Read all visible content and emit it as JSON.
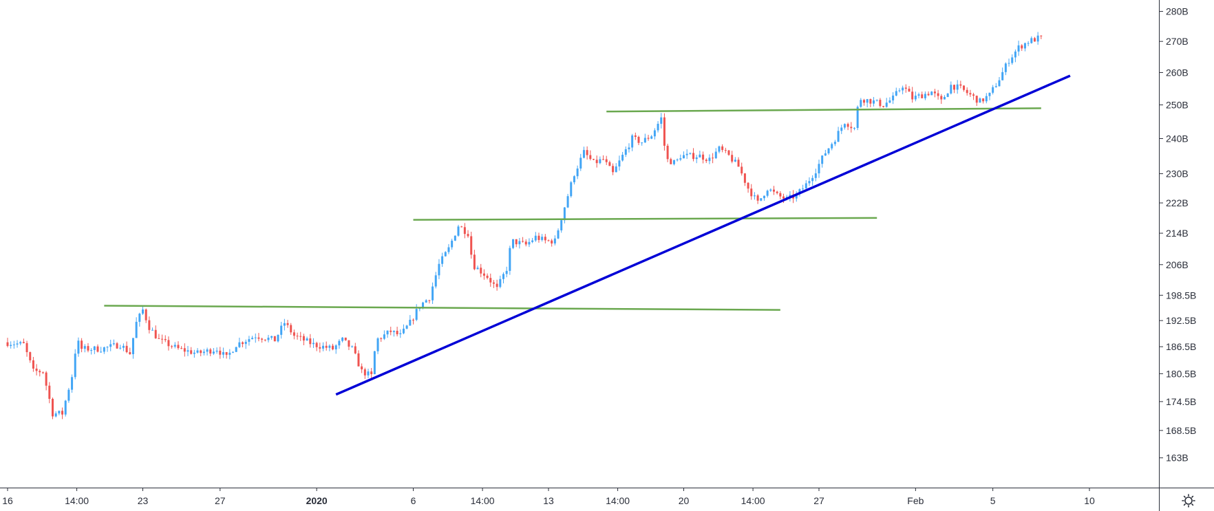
{
  "chart_data": {
    "type": "candlestick",
    "colors": {
      "up": "#42a5f5",
      "down": "#ef5350",
      "horizontal_lines": "#6aa84f",
      "trendline": "#0000d6",
      "axis": "#2a2e39",
      "background": "#ffffff"
    },
    "y_axis": {
      "position": "right",
      "scale": "log",
      "range": [
        160,
        282
      ],
      "ticks": [
        "280B",
        "270B",
        "260B",
        "250B",
        "240B",
        "230B",
        "222B",
        "214B",
        "206B",
        "198.5B",
        "192.5B",
        "186.5B",
        "180.5B",
        "174.5B",
        "168.5B",
        "163B"
      ],
      "tick_values": [
        280,
        270,
        260,
        250,
        240,
        230,
        222,
        214,
        206,
        198.5,
        192.5,
        186.5,
        180.5,
        174.5,
        168.5,
        163
      ]
    },
    "x_axis": {
      "range": [
        "2019-12-16",
        "2020-02-10"
      ],
      "ticks": [
        {
          "label": "16",
          "t": "2019-12-16"
        },
        {
          "label": "14:00",
          "t": "2019-12-19T14:00"
        },
        {
          "label": "23",
          "t": "2019-12-23"
        },
        {
          "label": "27",
          "t": "2019-12-27"
        },
        {
          "label": "2020",
          "t": "2020-01-01",
          "bold": true
        },
        {
          "label": "6",
          "t": "2020-01-06"
        },
        {
          "label": "14:00",
          "t": "2020-01-09T14:00"
        },
        {
          "label": "13",
          "t": "2020-01-13"
        },
        {
          "label": "14:00",
          "t": "2020-01-16T14:00"
        },
        {
          "label": "20",
          "t": "2020-01-20"
        },
        {
          "label": "14:00",
          "t": "2020-01-23T14:00"
        },
        {
          "label": "27",
          "t": "2020-01-27"
        },
        {
          "label": "Feb",
          "t": "2020-02-01"
        },
        {
          "label": "5",
          "t": "2020-02-05"
        },
        {
          "label": "10",
          "t": "2020-02-10"
        }
      ]
    },
    "price_path": [
      {
        "t": "2019-12-16",
        "v": 187.5
      },
      {
        "t": "2019-12-17",
        "v": 187
      },
      {
        "t": "2019-12-17T12:00",
        "v": 181
      },
      {
        "t": "2019-12-18",
        "v": 181
      },
      {
        "t": "2019-12-18T12:00",
        "v": 172
      },
      {
        "t": "2019-12-19",
        "v": 172
      },
      {
        "t": "2019-12-19T12:00",
        "v": 180
      },
      {
        "t": "2019-12-19T18:00",
        "v": 188
      },
      {
        "t": "2019-12-20",
        "v": 186
      },
      {
        "t": "2019-12-21",
        "v": 186
      },
      {
        "t": "2019-12-22",
        "v": 187
      },
      {
        "t": "2019-12-22T12:00",
        "v": 185
      },
      {
        "t": "2019-12-22T20:00",
        "v": 192
      },
      {
        "t": "2019-12-23T04:00",
        "v": 195
      },
      {
        "t": "2019-12-23T12:00",
        "v": 191
      },
      {
        "t": "2019-12-24",
        "v": 188
      },
      {
        "t": "2019-12-25",
        "v": 186
      },
      {
        "t": "2019-12-26",
        "v": 185
      },
      {
        "t": "2019-12-27",
        "v": 186
      },
      {
        "t": "2019-12-27T12:00",
        "v": 184
      },
      {
        "t": "2019-12-28",
        "v": 187
      },
      {
        "t": "2019-12-29",
        "v": 189
      },
      {
        "t": "2019-12-30",
        "v": 188
      },
      {
        "t": "2019-12-30T12:00",
        "v": 192
      },
      {
        "t": "2019-12-31",
        "v": 189
      },
      {
        "t": "2020-01-01",
        "v": 187
      },
      {
        "t": "2020-01-02",
        "v": 186
      },
      {
        "t": "2020-01-02T12:00",
        "v": 188
      },
      {
        "t": "2020-01-03",
        "v": 186
      },
      {
        "t": "2020-01-03T12:00",
        "v": 181
      },
      {
        "t": "2020-01-04",
        "v": 180
      },
      {
        "t": "2020-01-04T06:00",
        "v": 188
      },
      {
        "t": "2020-01-05",
        "v": 190
      },
      {
        "t": "2020-01-05T12:00",
        "v": 189
      },
      {
        "t": "2020-01-06",
        "v": 192
      },
      {
        "t": "2020-01-06T12:00",
        "v": 196
      },
      {
        "t": "2020-01-07",
        "v": 198
      },
      {
        "t": "2020-01-07T12:00",
        "v": 206
      },
      {
        "t": "2020-01-08",
        "v": 210
      },
      {
        "t": "2020-01-08T12:00",
        "v": 216
      },
      {
        "t": "2020-01-09",
        "v": 214
      },
      {
        "t": "2020-01-09T06:00",
        "v": 206
      },
      {
        "t": "2020-01-10",
        "v": 203
      },
      {
        "t": "2020-01-10T12:00",
        "v": 200
      },
      {
        "t": "2020-01-11",
        "v": 205
      },
      {
        "t": "2020-01-11T06:00",
        "v": 212
      },
      {
        "t": "2020-01-12",
        "v": 211
      },
      {
        "t": "2020-01-12T12:00",
        "v": 213
      },
      {
        "t": "2020-01-13",
        "v": 212
      },
      {
        "t": "2020-01-13T12:00",
        "v": 212
      },
      {
        "t": "2020-01-14",
        "v": 221
      },
      {
        "t": "2020-01-14T12:00",
        "v": 230
      },
      {
        "t": "2020-01-15",
        "v": 236
      },
      {
        "t": "2020-01-15T12:00",
        "v": 233
      },
      {
        "t": "2020-01-16",
        "v": 234
      },
      {
        "t": "2020-01-16T12:00",
        "v": 230
      },
      {
        "t": "2020-01-17",
        "v": 235
      },
      {
        "t": "2020-01-17T12:00",
        "v": 240
      },
      {
        "t": "2020-01-18",
        "v": 239
      },
      {
        "t": "2020-01-18T12:00",
        "v": 241
      },
      {
        "t": "2020-01-19",
        "v": 246
      },
      {
        "t": "2020-01-19T06:00",
        "v": 234
      },
      {
        "t": "2020-01-19T18:00",
        "v": 233
      },
      {
        "t": "2020-01-20",
        "v": 235
      },
      {
        "t": "2020-01-21",
        "v": 235
      },
      {
        "t": "2020-01-21T12:00",
        "v": 234
      },
      {
        "t": "2020-01-22",
        "v": 237
      },
      {
        "t": "2020-01-22T12:00",
        "v": 235
      },
      {
        "t": "2020-01-23",
        "v": 232
      },
      {
        "t": "2020-01-23T12:00",
        "v": 226
      },
      {
        "t": "2020-01-24",
        "v": 222
      },
      {
        "t": "2020-01-24T12:00",
        "v": 226
      },
      {
        "t": "2020-01-25",
        "v": 224
      },
      {
        "t": "2020-01-25T12:00",
        "v": 223
      },
      {
        "t": "2020-01-26",
        "v": 224
      },
      {
        "t": "2020-01-26T12:00",
        "v": 227
      },
      {
        "t": "2020-01-27",
        "v": 231
      },
      {
        "t": "2020-01-27T12:00",
        "v": 236
      },
      {
        "t": "2020-01-28",
        "v": 240
      },
      {
        "t": "2020-01-28T12:00",
        "v": 245
      },
      {
        "t": "2020-01-29",
        "v": 243
      },
      {
        "t": "2020-01-29T06:00",
        "v": 252
      },
      {
        "t": "2020-01-30",
        "v": 251
      },
      {
        "t": "2020-01-30T12:00",
        "v": 250
      },
      {
        "t": "2020-01-31",
        "v": 252
      },
      {
        "t": "2020-01-31T12:00",
        "v": 256
      },
      {
        "t": "2020-02-01",
        "v": 252
      },
      {
        "t": "2020-02-01T12:00",
        "v": 253
      },
      {
        "t": "2020-02-02",
        "v": 254
      },
      {
        "t": "2020-02-02T12:00",
        "v": 251
      },
      {
        "t": "2020-02-03",
        "v": 256
      },
      {
        "t": "2020-02-03T12:00",
        "v": 255
      },
      {
        "t": "2020-02-04",
        "v": 253
      },
      {
        "t": "2020-02-04T12:00",
        "v": 251
      },
      {
        "t": "2020-02-05",
        "v": 253
      },
      {
        "t": "2020-02-05T12:00",
        "v": 258
      },
      {
        "t": "2020-02-06",
        "v": 264
      },
      {
        "t": "2020-02-06T12:00",
        "v": 268
      },
      {
        "t": "2020-02-07",
        "v": 270
      },
      {
        "t": "2020-02-07T12:00",
        "v": 271
      }
    ],
    "horizontal_lines": [
      {
        "t1": "2019-12-21",
        "v1": 196,
        "t2": "2020-01-25",
        "v2": 195
      },
      {
        "t1": "2020-01-06",
        "v1": 217.5,
        "t2": "2020-01-30",
        "v2": 218
      },
      {
        "t1": "2020-01-16",
        "v1": 248,
        "t2": "2020-02-07T12:00",
        "v2": 249
      }
    ],
    "trendline": {
      "t1": "2020-01-02",
      "v1": 176,
      "t2": "2020-02-09",
      "v2": 259
    }
  }
}
